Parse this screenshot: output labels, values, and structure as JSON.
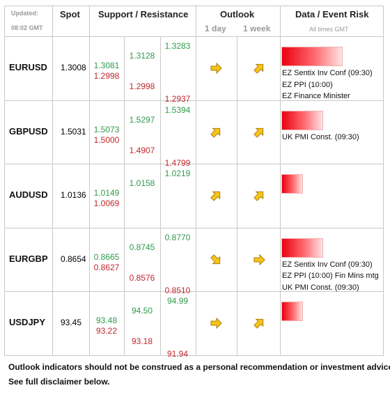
{
  "header": {
    "updated": "Updated:",
    "time": "08:02 GMT",
    "spot": "Spot",
    "sr": "Support / Resistance",
    "outlook": "Outlook",
    "day": "1 day",
    "week": "1 week",
    "events": "Data / Event Risk",
    "times": "All times GMT"
  },
  "rows": [
    {
      "pair": "EURUSD",
      "spot": "1.3008",
      "resistance": [
        "1.3081",
        "1.3128",
        "1.3283"
      ],
      "support": [
        "1.2998",
        "1.2998",
        "1.2937"
      ],
      "events": [
        "EZ Sentix Inv Conf (09:30)",
        "EZ PPI (10:00)",
        "EZ Finance Minister"
      ]
    },
    {
      "pair": "GBPUSD",
      "spot": "1.5031",
      "resistance": [
        "1.5073",
        "1.5297",
        "1.5394"
      ],
      "support": [
        "1.5000",
        "1.4907",
        "1.4799"
      ],
      "events": [
        "UK PMI Const. (09:30)"
      ]
    },
    {
      "pair": "AUDUSD",
      "spot": "1.0136",
      "resistance": [
        "1.0149",
        "1.0158",
        "1.0219"
      ],
      "support": [
        "1.0069"
      ],
      "events": []
    },
    {
      "pair": "EURGBP",
      "spot": "0.8654",
      "resistance": [
        "0.8665",
        "0.8745",
        "0.8770"
      ],
      "support": [
        "0.8627",
        "0.8576",
        "0.8510"
      ],
      "events": [
        "EZ Sentix Inv Conf (09:30)",
        "EZ PPI (10:00) Fin Mins mtg",
        "UK PMI Const. (09:30)"
      ]
    },
    {
      "pair": "USDJPY",
      "spot": "93.45",
      "resistance": [
        "93.48",
        "94.50",
        "94.99"
      ],
      "support": [
        "93.22",
        "93.18",
        "91.94"
      ],
      "events": []
    }
  ],
  "footer": [
    "Outlook indicators should not be construed as a personal recommendation or investment advice.",
    "See full disclaimer below."
  ]
}
